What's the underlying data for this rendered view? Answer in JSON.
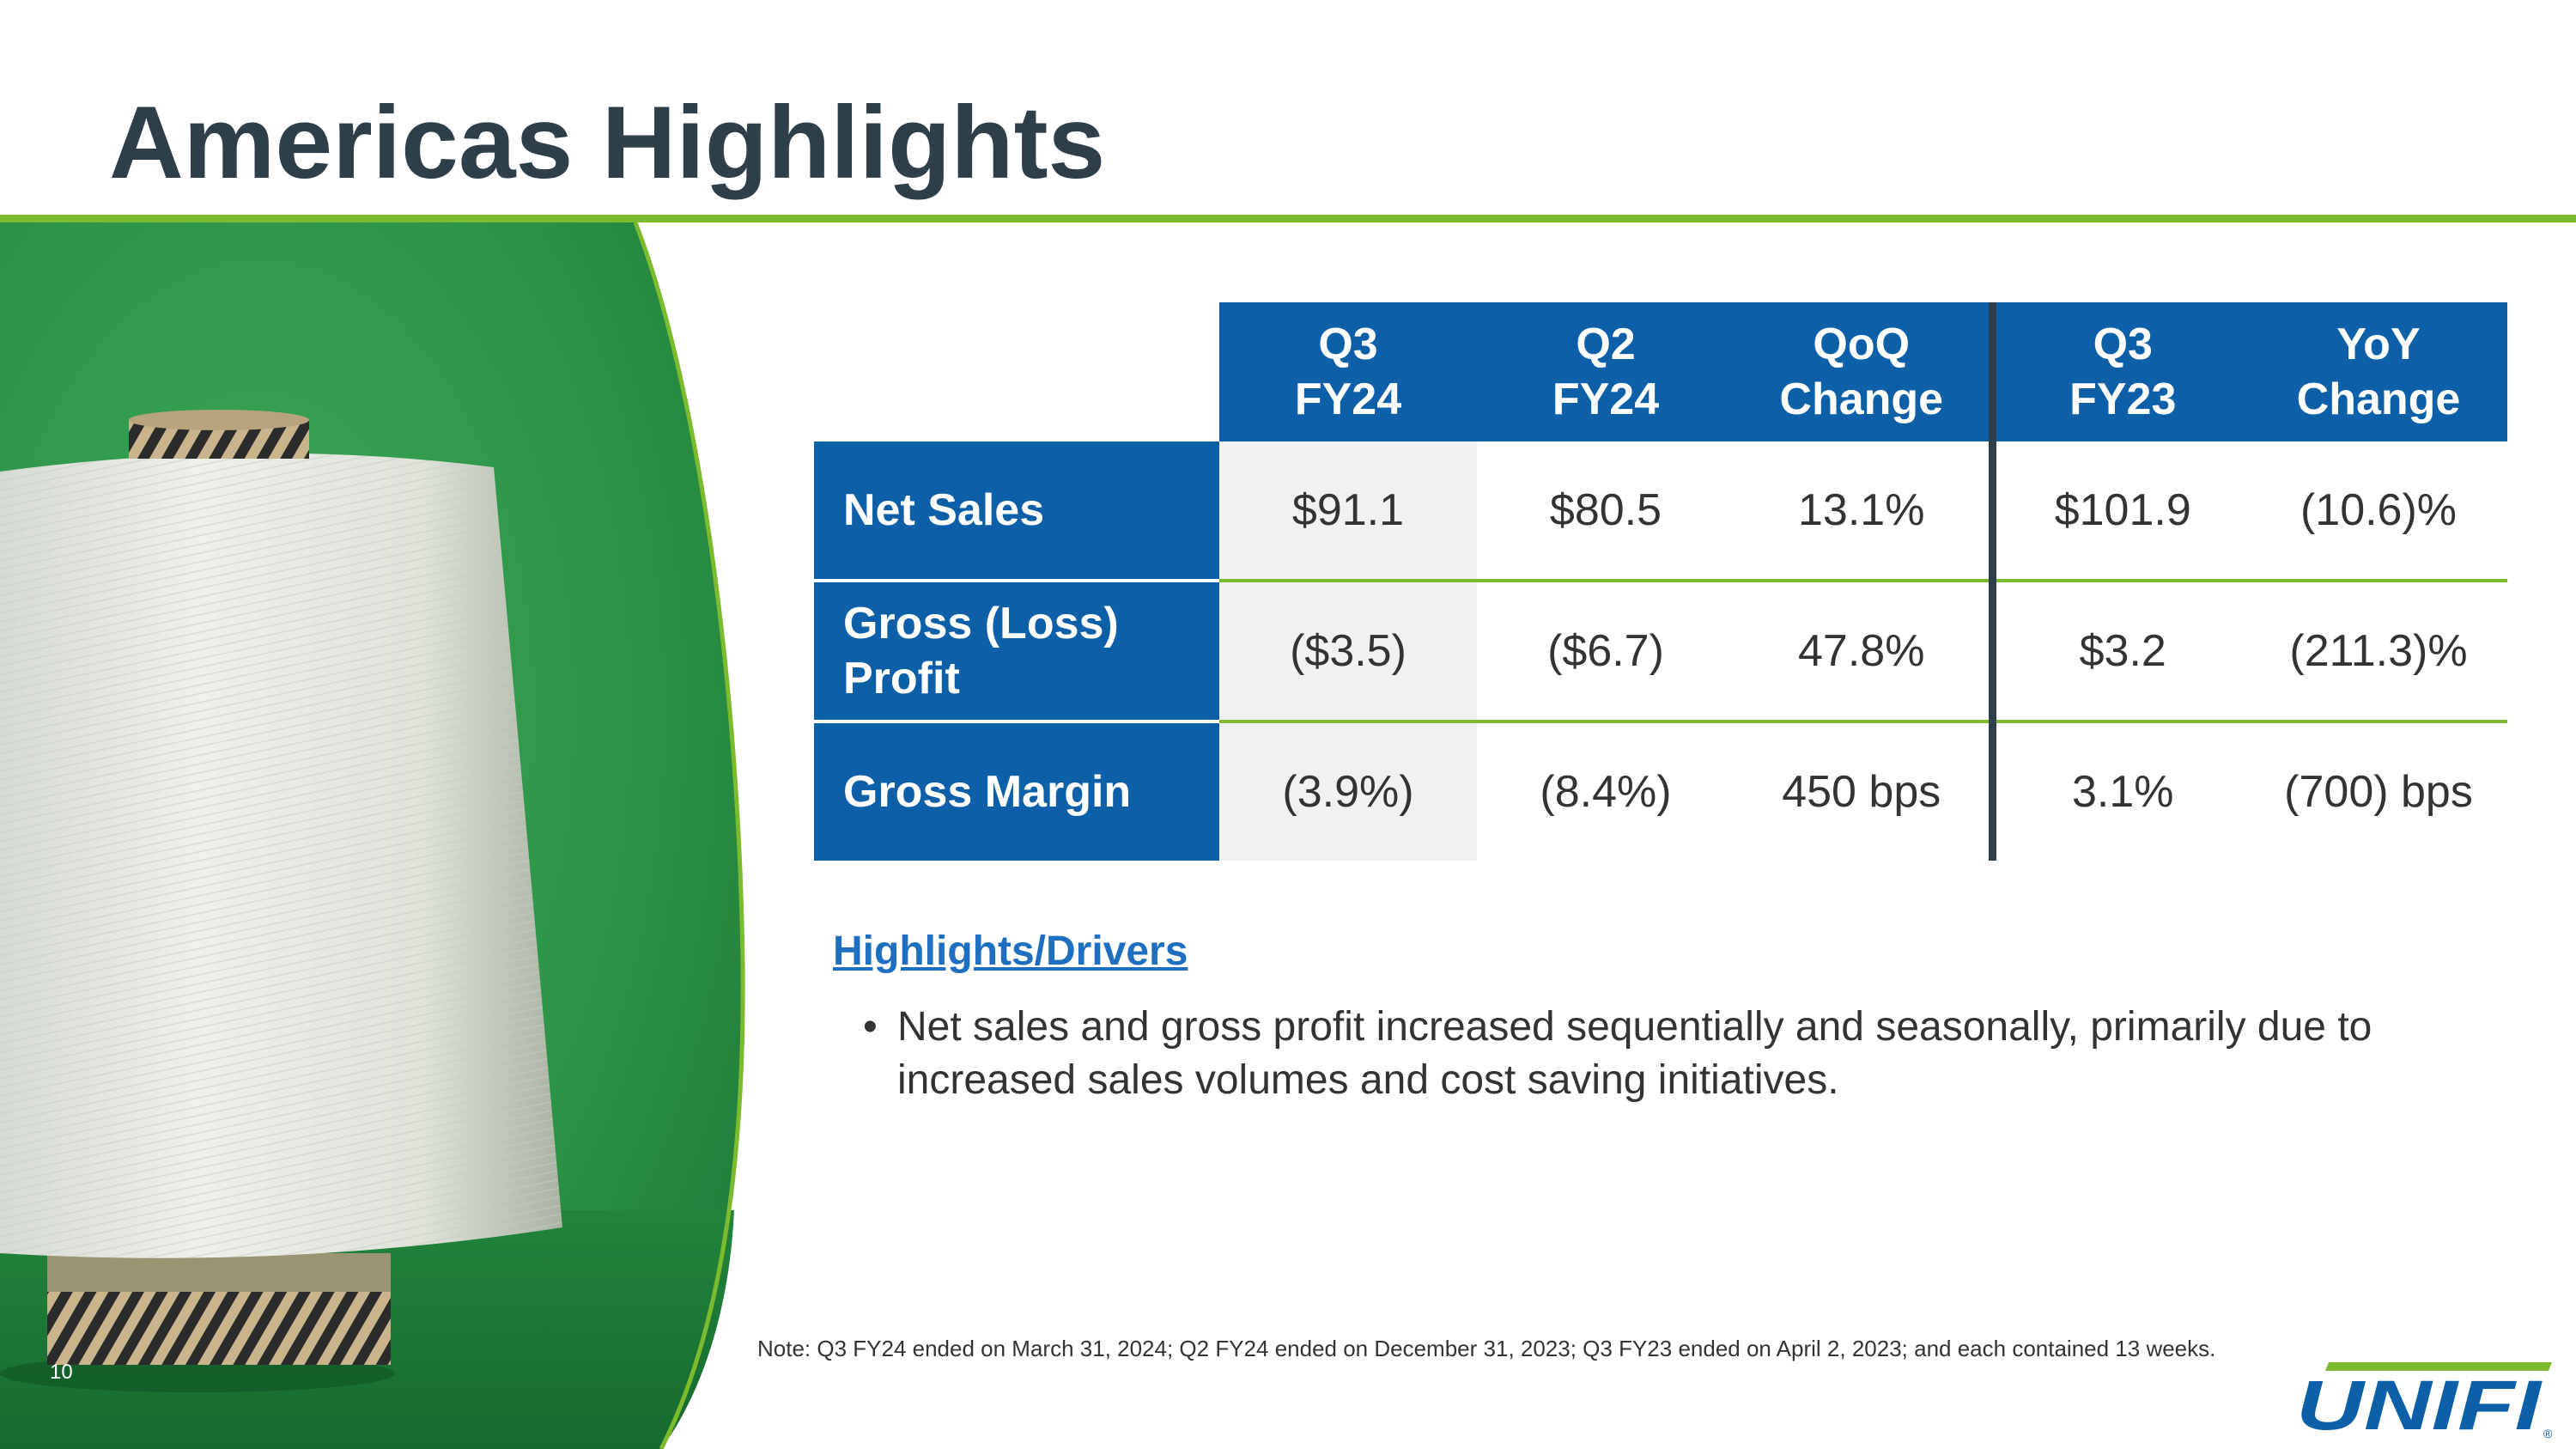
{
  "page": {
    "title": "Americas Highlights",
    "page_number": "10",
    "colors": {
      "brand_blue": "#0d5fa8",
      "accent_green": "#7cbb2e",
      "title_slate": "#2f3f4a",
      "link_blue": "#1f6fc0"
    }
  },
  "table": {
    "columns": [
      {
        "line1": "Q3",
        "line2": "FY24"
      },
      {
        "line1": "Q2",
        "line2": "FY24"
      },
      {
        "line1": "QoQ",
        "line2": "Change"
      },
      {
        "line1": "Q3",
        "line2": "FY23"
      },
      {
        "line1": "YoY",
        "line2": "Change"
      }
    ],
    "rows": [
      {
        "label_line1": "Net Sales",
        "label_line2": "",
        "values": [
          "$91.1",
          "$80.5",
          "13.1%",
          "$101.9",
          "(10.6)%"
        ]
      },
      {
        "label_line1": "Gross (Loss)",
        "label_line2": "Profit",
        "values": [
          "($3.5)",
          "($6.7)",
          "47.8%",
          "$3.2",
          "(211.3)%"
        ]
      },
      {
        "label_line1": "Gross Margin",
        "label_line2": "",
        "values": [
          "(3.9%)",
          "(8.4%)",
          "450 bps",
          "3.1%",
          "(700) bps"
        ]
      }
    ]
  },
  "highlights": {
    "heading": "Highlights/Drivers",
    "bullets": [
      "Net sales and gross profit increased sequentially and seasonally, primarily due to increased sales volumes and cost saving initiatives."
    ]
  },
  "note": "Note: Q3 FY24 ended on March 31, 2024; Q2 FY24 ended on December 31, 2023; Q3 FY23 ended on April 2, 2023; and each contained 13 weeks.",
  "logo": {
    "text": "UNIFI",
    "mark": "®"
  }
}
